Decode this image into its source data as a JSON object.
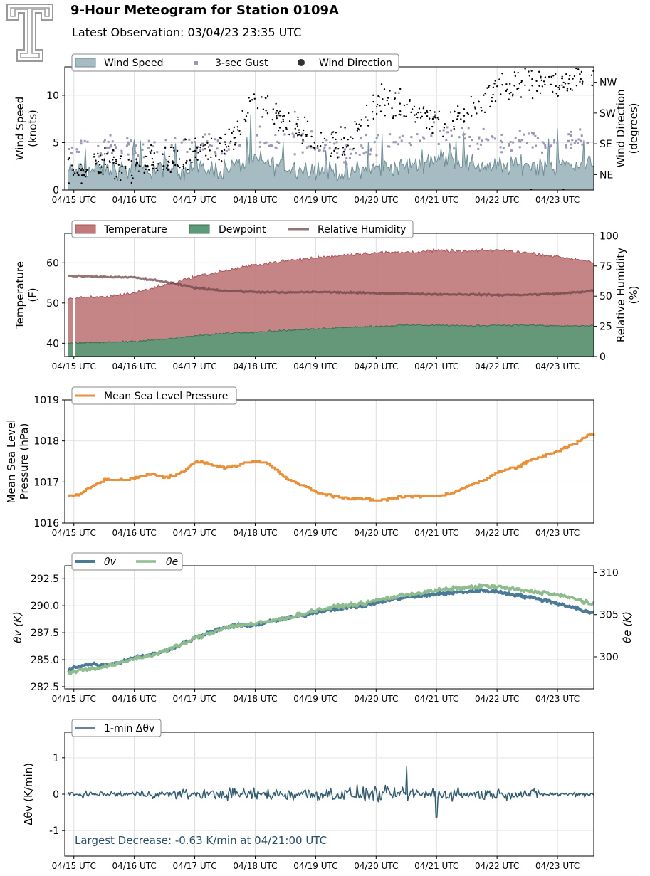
{
  "header": {
    "title": "9-Hour Meteogram for Station 0109A",
    "subtitle": "Latest Observation: 03/04/23 23:35 UTC"
  },
  "colors": {
    "wind_fill": "#a7bcc2",
    "wind_edge": "#6e8f96",
    "gust": "#9c96b4",
    "direction": "#000000",
    "temperature": "#c07a7c",
    "temperature_edge": "#a9545a",
    "dewpoint": "#5c9a78",
    "dewpoint_edge": "#386e52",
    "humidity": "#6e4548",
    "pressure": "#e8913a",
    "theta_v": "#4a7a96",
    "theta_e": "#8fbc8f",
    "dtheta": "#345c70",
    "annotation": "#2a4f66"
  },
  "chart_data": [
    {
      "id": "wind",
      "type": "area",
      "legend": [
        "Wind Speed",
        "3-sec Gust",
        "Wind Direction"
      ],
      "legend_placement": "top-left",
      "xlabel": "",
      "x_ticks": [
        "04/15 UTC",
        "04/16 UTC",
        "04/17 UTC",
        "04/18 UTC",
        "04/19 UTC",
        "04/20 UTC",
        "04/21 UTC",
        "04/22 UTC",
        "04/23 UTC"
      ],
      "x_range": [
        -0.15,
        8.6
      ],
      "ylabel": [
        "Wind Speed",
        "(knots)"
      ],
      "ylim": [
        0,
        13
      ],
      "y_ticks": [
        0,
        5,
        10
      ],
      "y2label": [
        "Wind Direction",
        "(degrees)"
      ],
      "y2lim": [
        0,
        360
      ],
      "y2_ticks": [
        {
          "value": 45,
          "label": "NE"
        },
        {
          "value": 135,
          "label": "SE"
        },
        {
          "value": 225,
          "label": "SW"
        },
        {
          "value": 315,
          "label": "NW"
        }
      ],
      "grid": true,
      "series": [
        {
          "name": "Wind Speed",
          "x": [
            0,
            0.5,
            1,
            1.5,
            2,
            2.5,
            3,
            3.5,
            4,
            4.5,
            5,
            5.5,
            6,
            6.5,
            7,
            7.5,
            8,
            8.5
          ],
          "y": [
            2.0,
            2.2,
            2.1,
            2.3,
            2.2,
            2.2,
            3.2,
            2.4,
            2.2,
            1.8,
            2.3,
            2.5,
            3.5,
            2.8,
            2.4,
            2.8,
            2.5,
            2.8
          ]
        },
        {
          "name": "3-sec Gust",
          "x": [
            0,
            0.5,
            1,
            1.5,
            2,
            2.5,
            3,
            3.5,
            4,
            4.5,
            5,
            5.5,
            6,
            6.5,
            7,
            7.5,
            8,
            8.5
          ],
          "y": [
            4.0,
            4.5,
            4.2,
            4.8,
            4.5,
            4.6,
            5.5,
            4.8,
            4.6,
            4.0,
            4.6,
            5.0,
            6.0,
            5.4,
            4.8,
            5.5,
            5.0,
            5.5
          ]
        },
        {
          "name": "Wind Direction",
          "x": [
            0,
            0.5,
            1,
            1.5,
            2,
            2.5,
            3,
            3.5,
            4,
            4.5,
            5,
            5.5,
            6,
            6.5,
            7,
            7.5,
            8,
            8.5
          ],
          "y": [
            60,
            80,
            70,
            90,
            100,
            130,
            250,
            200,
            150,
            120,
            260,
            240,
            200,
            220,
            300,
            320,
            310,
            330
          ]
        }
      ]
    },
    {
      "id": "temperature",
      "type": "area",
      "legend": [
        "Temperature",
        "Dewpoint",
        "Relative Humidity"
      ],
      "legend_placement": "top-left",
      "x_ticks": [
        "04/15 UTC",
        "04/16 UTC",
        "04/17 UTC",
        "04/18 UTC",
        "04/19 UTC",
        "04/20 UTC",
        "04/21 UTC",
        "04/22 UTC",
        "04/23 UTC"
      ],
      "x_range": [
        -0.15,
        8.6
      ],
      "ylabel": [
        "Temperature",
        "(F)"
      ],
      "ylim": [
        36.7,
        67.3
      ],
      "y_ticks": [
        40,
        50,
        60
      ],
      "y2label": [
        "Relative Humidity",
        "(%)"
      ],
      "y2lim": [
        0,
        102
      ],
      "y2_ticks": [
        0,
        25,
        50,
        75,
        100
      ],
      "grid": true,
      "series": [
        {
          "name": "Temperature",
          "x": [
            -0.1,
            0,
            0.5,
            1,
            1.5,
            2,
            2.5,
            3,
            3.5,
            4,
            4.5,
            5,
            5.5,
            6,
            6.5,
            7,
            7.5,
            8,
            8.5,
            8.6
          ],
          "y": [
            51,
            51.2,
            51.5,
            52.5,
            54.5,
            56.5,
            58.0,
            59.5,
            60.5,
            61.2,
            62.0,
            62.5,
            62.6,
            63.0,
            62.8,
            63.2,
            62.5,
            61.5,
            60.5,
            60.0
          ]
        },
        {
          "name": "Dewpoint",
          "x": [
            -0.1,
            0,
            0.5,
            1,
            1.5,
            2,
            2.5,
            3,
            3.5,
            4,
            4.5,
            5,
            5.5,
            6,
            6.5,
            7,
            7.5,
            8,
            8.5,
            8.6
          ],
          "y": [
            40.0,
            40.0,
            40.2,
            40.5,
            41.0,
            41.8,
            42.5,
            42.8,
            43.2,
            43.5,
            44.0,
            44.2,
            44.5,
            44.5,
            44.3,
            44.5,
            44.5,
            44.3,
            44.3,
            44.5
          ]
        },
        {
          "name": "Relative Humidity",
          "x": [
            -0.1,
            0,
            0.5,
            1,
            1.5,
            2,
            2.5,
            3,
            3.5,
            4,
            4.5,
            5,
            5.5,
            6,
            6.5,
            7,
            7.5,
            8,
            8.5,
            8.6
          ],
          "y": [
            67,
            66.5,
            66,
            65.5,
            62,
            57,
            54.5,
            53.5,
            53.0,
            53.5,
            53.0,
            52.5,
            52.2,
            51.5,
            51.5,
            51.0,
            51.2,
            52.0,
            54.0,
            55.0
          ]
        }
      ]
    },
    {
      "id": "pressure",
      "type": "line",
      "legend": [
        "Mean Sea Level Pressure"
      ],
      "legend_placement": "top-left",
      "x_ticks": [
        "04/15 UTC",
        "04/16 UTC",
        "04/17 UTC",
        "04/18 UTC",
        "04/19 UTC",
        "04/20 UTC",
        "04/21 UTC",
        "04/22 UTC",
        "04/23 UTC"
      ],
      "x_range": [
        -0.15,
        8.6
      ],
      "ylabel": [
        "Mean Sea Level",
        "Pressure (hPa)"
      ],
      "ylim": [
        1016,
        1019
      ],
      "y_ticks": [
        1016,
        1017,
        1018,
        1019
      ],
      "grid": true,
      "series": [
        {
          "name": "Mean Sea Level Pressure",
          "x": [
            -0.1,
            0.1,
            0.3,
            0.5,
            0.8,
            1.0,
            1.3,
            1.5,
            1.8,
            2.0,
            2.2,
            2.5,
            2.8,
            3.0,
            3.2,
            3.5,
            3.8,
            4.0,
            4.3,
            4.5,
            4.8,
            5.0,
            5.3,
            5.5,
            5.8,
            6.0,
            6.3,
            6.5,
            6.8,
            7.0,
            7.3,
            7.5,
            7.8,
            8.0,
            8.3,
            8.5,
            8.6
          ],
          "y": [
            1016.65,
            1016.7,
            1016.9,
            1017.05,
            1017.05,
            1017.1,
            1017.2,
            1017.1,
            1017.25,
            1017.5,
            1017.45,
            1017.35,
            1017.45,
            1017.5,
            1017.45,
            1017.1,
            1016.9,
            1016.75,
            1016.65,
            1016.6,
            1016.6,
            1016.55,
            1016.6,
            1016.65,
            1016.65,
            1016.65,
            1016.75,
            1016.9,
            1017.05,
            1017.25,
            1017.35,
            1017.5,
            1017.65,
            1017.75,
            1017.95,
            1018.15,
            1018.15
          ]
        }
      ]
    },
    {
      "id": "theta",
      "type": "line",
      "legend": [
        "θv",
        "θe"
      ],
      "legend_placement": "top-left",
      "x_ticks": [
        "04/15 UTC",
        "04/16 UTC",
        "04/17 UTC",
        "04/18 UTC",
        "04/19 UTC",
        "04/20 UTC",
        "04/21 UTC",
        "04/22 UTC",
        "04/23 UTC"
      ],
      "x_range": [
        -0.15,
        8.6
      ],
      "ylabel": "θv (K)",
      "ylim": [
        282.3,
        293.7
      ],
      "y_ticks": [
        {
          "value": 282.5,
          "label": "282.5"
        },
        {
          "value": 285.0,
          "label": "285.0"
        },
        {
          "value": 287.5,
          "label": "287.5"
        },
        {
          "value": 290.0,
          "label": "290.0"
        },
        {
          "value": 292.5,
          "label": "292.5"
        }
      ],
      "y2label": "θe (K)",
      "y2lim": [
        296.2,
        310.8
      ],
      "y2_ticks": [
        300,
        305,
        310
      ],
      "grid": true,
      "series": [
        {
          "name": "θv",
          "axis": "left",
          "x": [
            -0.1,
            0,
            0.3,
            0.5,
            0.8,
            1.0,
            1.3,
            1.5,
            1.8,
            2.0,
            2.3,
            2.5,
            2.8,
            3.0,
            3.3,
            3.5,
            3.8,
            4.0,
            4.3,
            4.5,
            4.8,
            5.0,
            5.3,
            5.5,
            5.8,
            6.0,
            6.3,
            6.5,
            6.8,
            7.0,
            7.3,
            7.5,
            7.8,
            8.0,
            8.3,
            8.5,
            8.6
          ],
          "y": [
            284.0,
            284.3,
            284.6,
            284.5,
            284.8,
            285.2,
            285.5,
            285.8,
            286.5,
            287.0,
            287.6,
            288.0,
            288.2,
            288.2,
            288.6,
            288.8,
            289.1,
            289.4,
            289.7,
            289.8,
            290.0,
            290.3,
            290.6,
            290.8,
            290.9,
            291.1,
            291.2,
            291.3,
            291.4,
            291.3,
            291.0,
            290.8,
            290.5,
            290.2,
            289.8,
            289.4,
            289.3
          ]
        },
        {
          "name": "θe",
          "axis": "right",
          "x": [
            -0.1,
            0,
            0.3,
            0.5,
            0.8,
            1.0,
            1.3,
            1.5,
            1.8,
            2.0,
            2.3,
            2.5,
            2.8,
            3.0,
            3.3,
            3.5,
            3.8,
            4.0,
            4.3,
            4.5,
            4.8,
            5.0,
            5.3,
            5.5,
            5.8,
            6.0,
            6.3,
            6.5,
            6.8,
            7.0,
            7.3,
            7.5,
            7.8,
            8.0,
            8.3,
            8.5,
            8.6
          ],
          "y": [
            298.0,
            298.3,
            298.6,
            298.8,
            299.3,
            299.8,
            300.2,
            300.7,
            301.5,
            302.2,
            302.9,
            303.5,
            303.8,
            303.9,
            304.3,
            304.6,
            305.1,
            305.5,
            305.9,
            306.1,
            306.3,
            306.7,
            307.1,
            307.4,
            307.6,
            307.9,
            308.1,
            308.2,
            308.4,
            308.3,
            308.0,
            307.8,
            307.6,
            307.3,
            306.9,
            306.4,
            306.1
          ]
        }
      ]
    },
    {
      "id": "dtheta",
      "type": "line",
      "legend": [
        "1-min Δθv"
      ],
      "legend_placement": "top-left",
      "x_ticks": [
        "04/15 UTC",
        "04/16 UTC",
        "04/17 UTC",
        "04/18 UTC",
        "04/19 UTC",
        "04/20 UTC",
        "04/21 UTC",
        "04/22 UTC",
        "04/23 UTC"
      ],
      "x_range": [
        -0.15,
        8.6
      ],
      "ylabel": "Δθv (K/min)",
      "ylim": [
        -1.7,
        1.7
      ],
      "y_ticks": [
        -1,
        0,
        1
      ],
      "grid": true,
      "annotation": "Largest Decrease: -0.63 K/min at 04/21:00 UTC",
      "series": [
        {
          "name": "1-min Δθv",
          "amplitude": [
            0.12,
            0.15,
            0.2,
            0.25,
            0.28,
            0.3,
            0.28,
            0.25,
            0.2,
            0.1
          ],
          "min": {
            "x": 6.0,
            "y": -0.63
          },
          "max": {
            "x": 5.5,
            "y": 0.75
          }
        }
      ]
    }
  ]
}
